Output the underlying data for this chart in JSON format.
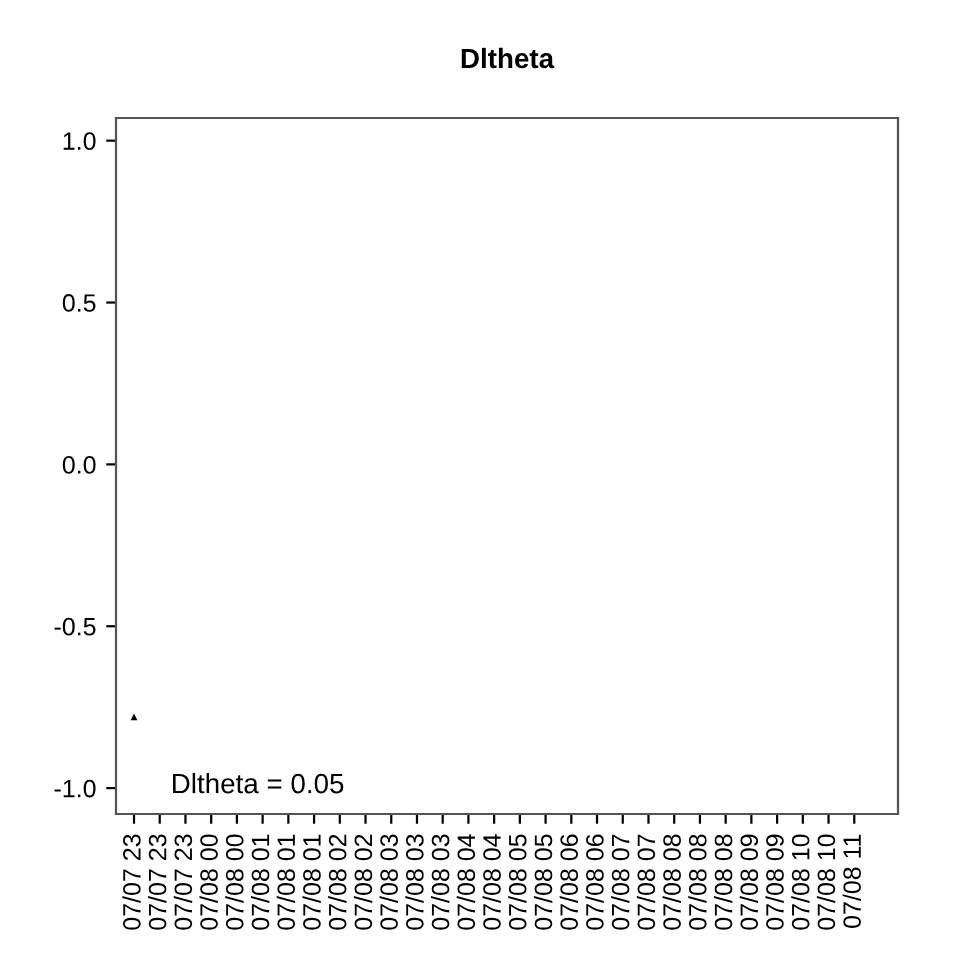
{
  "chart_data": {
    "type": "scatter",
    "title": "Dltheta",
    "categories": [
      "07/07 23",
      "07/07 23",
      "07/07 23",
      "07/08 00",
      "07/08 00",
      "07/08 01",
      "07/08 01",
      "07/08 01",
      "07/08 02",
      "07/08 02",
      "07/08 03",
      "07/08 03",
      "07/08 03",
      "07/08 04",
      "07/08 04",
      "07/08 05",
      "07/08 05",
      "07/08 06",
      "07/08 06",
      "07/08 07",
      "07/08 07",
      "07/08 08",
      "07/08 08",
      "07/08 08",
      "07/08 09",
      "07/08 09",
      "07/08 10",
      "07/08 10",
      "07/08 11"
    ],
    "series": [
      {
        "color": "#000000",
        "values": [
          -0.78,
          null,
          null,
          null,
          null,
          null,
          null,
          null,
          null,
          null,
          null,
          null,
          null,
          null,
          null,
          null,
          null,
          null,
          null,
          null,
          null,
          null,
          null,
          null,
          null,
          null,
          null,
          null,
          null
        ]
      }
    ],
    "marker": "triangle",
    "ylim": [
      -1.08,
      1.07
    ],
    "yticks": [
      {
        "value": -1,
        "label": "-1.0"
      },
      -0.5,
      {
        "value": 0,
        "label": "0.0"
      },
      0.5,
      {
        "value": 1,
        "label": "1.0"
      }
    ],
    "annotations": [
      "Dltheta = 0.05"
    ],
    "grid": false,
    "legend": false
  }
}
